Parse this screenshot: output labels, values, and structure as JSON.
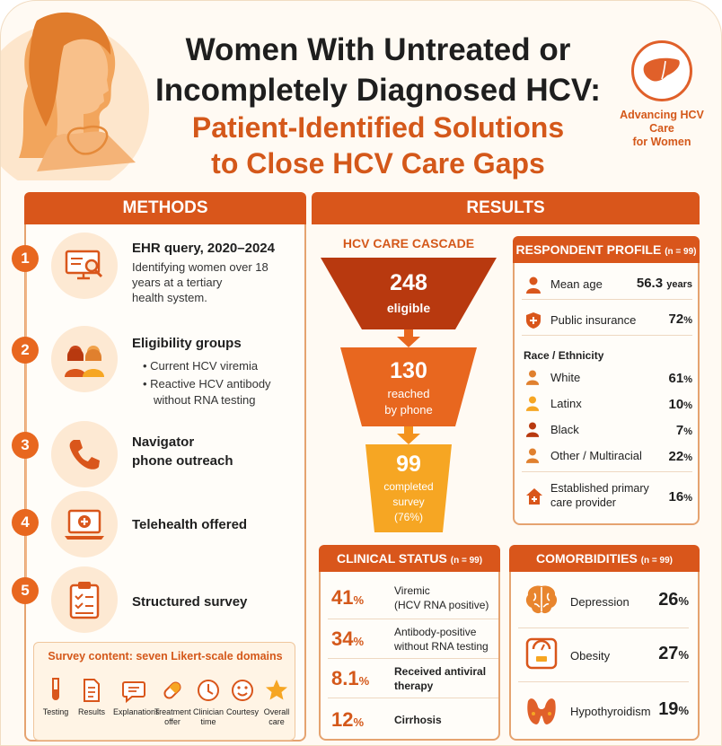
{
  "header": {
    "title_line1": "Women With Untreated or",
    "title_line2": "Incompletely Diagnosed HCV:",
    "subtitle_line1": "Patient-Identified Solutions",
    "subtitle_line2": "to Close HCV Care Gaps",
    "badge_line1": "Advancing HCV Care",
    "badge_line2": "for Women"
  },
  "methods": {
    "heading": "METHODS",
    "steps": [
      {
        "num": "1",
        "title": "EHR query, 2020–2024",
        "desc1": "Identifying women over 18",
        "desc2": "years at a tertiary",
        "desc3": "health system.",
        "icon": "computer-search-icon"
      },
      {
        "num": "2",
        "title": "Eligibility groups",
        "desc1": "•  Current HCV viremia",
        "desc2": "•  Reactive HCV antibody",
        "desc3": "without RNA testing",
        "icon": "women-group-icon"
      },
      {
        "num": "3",
        "title": "Navigator",
        "title2": "phone outreach",
        "icon": "phone-icon"
      },
      {
        "num": "4",
        "title": "Telehealth offered",
        "icon": "laptop-medical-icon"
      },
      {
        "num": "5",
        "title": "Structured survey",
        "icon": "clipboard-checklist-icon"
      }
    ],
    "survey": {
      "heading": "Survey content: seven Likert-scale domains",
      "items": [
        {
          "l1": "Testing",
          "l2": "",
          "icon": "test-tube-icon"
        },
        {
          "l1": "Results",
          "l2": "",
          "icon": "document-icon"
        },
        {
          "l1": "Explanations",
          "l2": "",
          "icon": "speech-bubble-icon"
        },
        {
          "l1": "Treatment",
          "l2": "offer",
          "icon": "pill-icon"
        },
        {
          "l1": "Clinician",
          "l2": "time",
          "icon": "clock-icon"
        },
        {
          "l1": "Courtesy",
          "l2": "",
          "icon": "smiley-icon"
        },
        {
          "l1": "Overall",
          "l2": "care",
          "icon": "star-icon"
        }
      ]
    }
  },
  "results": {
    "heading": "RESULTS",
    "cascade": {
      "title": "HCV CARE CASCADE",
      "stage1_num": "248",
      "stage1_l1": "eligible",
      "stage2_num": "130",
      "stage2_l1": "reached",
      "stage2_l2": "by phone",
      "stage3_num": "99",
      "stage3_l1": "completed",
      "stage3_l2": "survey",
      "stage3_l3": "(76%)",
      "colors": {
        "stage1": "#b8390f",
        "stage2": "#e8671f",
        "stage3": "#f6a623"
      }
    },
    "profile": {
      "heading": "RESPONDENT PROFILE",
      "n": "(n = 99)",
      "mean_age_label": "Mean age",
      "mean_age_value": "56.3",
      "mean_age_unit": "years",
      "insurance_label": "Public insurance",
      "insurance_value": "72",
      "pct": "%",
      "race_heading": "Race / Ethnicity",
      "race": [
        {
          "label": "White",
          "value": "61"
        },
        {
          "label": "Latinx",
          "value": "10"
        },
        {
          "label": "Black",
          "value": "7"
        },
        {
          "label": "Other / Multiracial",
          "value": "22"
        }
      ],
      "pcp_label1": "Established primary",
      "pcp_label2": "care provider",
      "pcp_value": "16"
    },
    "clinical": {
      "heading": "CLINICAL STATUS",
      "n": "(n = 99)",
      "rows": [
        {
          "value": "41",
          "l1": "Viremic",
          "l2": "(HCV RNA positive)"
        },
        {
          "value": "34",
          "l1": "Antibody-positive",
          "l2": "without RNA testing"
        },
        {
          "value": "8.1",
          "l1": "Received antiviral",
          "l2": "therapy"
        },
        {
          "value": "12",
          "l1": "Cirrhosis",
          "l2": ""
        }
      ]
    },
    "comorbidities": {
      "heading": "COMORBIDITIES",
      "n": "(n = 99)",
      "rows": [
        {
          "label": "Depression",
          "value": "26",
          "icon": "brain-icon"
        },
        {
          "label": "Obesity",
          "value": "27",
          "icon": "scale-icon"
        },
        {
          "label": "Hypothyroidism",
          "value": "19",
          "icon": "thyroid-icon"
        }
      ]
    }
  }
}
